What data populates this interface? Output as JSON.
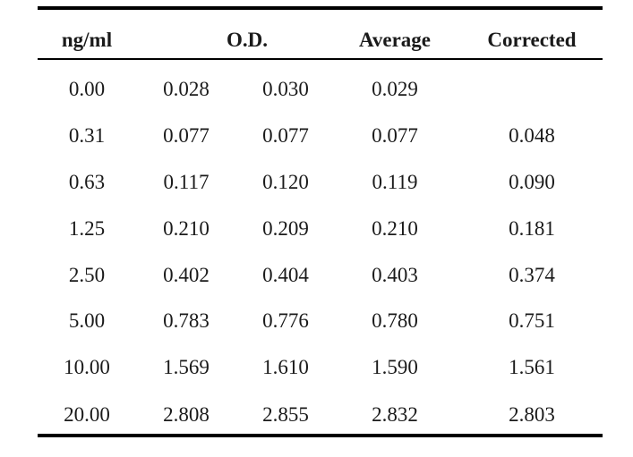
{
  "table": {
    "headers": {
      "concentration": "ng/ml",
      "od": "O.D.",
      "average": "Average",
      "corrected": "Corrected"
    },
    "rows": [
      {
        "conc": "0.00",
        "od1": "0.028",
        "od2": "0.030",
        "avg": "0.029",
        "corr": ""
      },
      {
        "conc": "0.31",
        "od1": "0.077",
        "od2": "0.077",
        "avg": "0.077",
        "corr": "0.048"
      },
      {
        "conc": "0.63",
        "od1": "0.117",
        "od2": "0.120",
        "avg": "0.119",
        "corr": "0.090"
      },
      {
        "conc": "1.25",
        "od1": "0.210",
        "od2": "0.209",
        "avg": "0.210",
        "corr": "0.181"
      },
      {
        "conc": "2.50",
        "od1": "0.402",
        "od2": "0.404",
        "avg": "0.403",
        "corr": "0.374"
      },
      {
        "conc": "5.00",
        "od1": "0.783",
        "od2": "0.776",
        "avg": "0.780",
        "corr": "0.751"
      },
      {
        "conc": "10.00",
        "od1": "1.569",
        "od2": "1.610",
        "avg": "1.590",
        "corr": "1.561"
      },
      {
        "conc": "20.00",
        "od1": "2.808",
        "od2": "2.855",
        "avg": "2.832",
        "corr": "2.803"
      }
    ]
  }
}
